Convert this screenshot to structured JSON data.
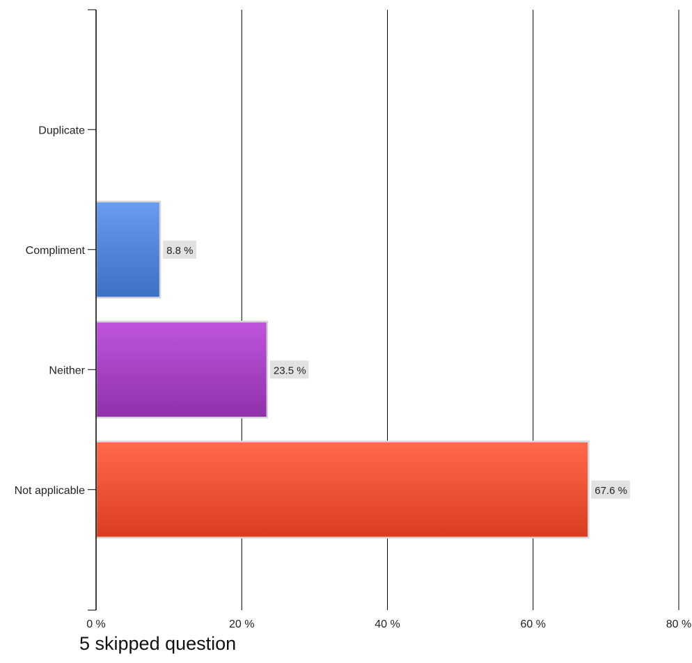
{
  "chart_data": {
    "type": "bar",
    "orientation": "horizontal",
    "categories": [
      "Duplicate",
      "Compliment",
      "Neither",
      "Not applicable"
    ],
    "values": [
      0,
      8.8,
      23.5,
      67.6
    ],
    "data_labels": [
      "",
      "8.8 %",
      "23.5 %",
      "67.6 %"
    ],
    "colors": [
      "#5b8ee6",
      "#5b8ee6",
      "#a33fbf",
      "#ec4a2e"
    ],
    "x_ticks": [
      "0 %",
      "20 %",
      "40 %",
      "60 %",
      "80 %"
    ],
    "xlim": [
      0,
      80
    ],
    "grid": true
  },
  "footer": {
    "note": "5 skipped question"
  }
}
